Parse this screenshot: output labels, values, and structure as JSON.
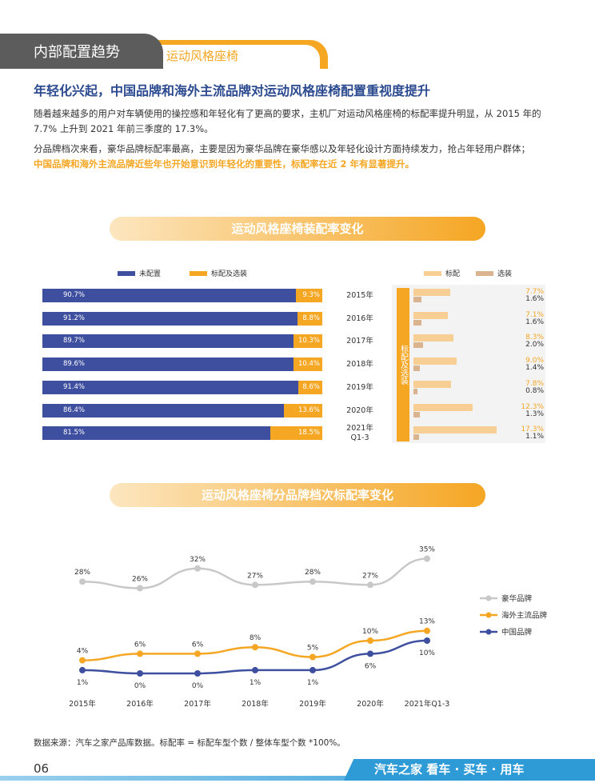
{
  "header": {
    "section_title": "内部配置趋势",
    "sub_title": "运动风格座椅"
  },
  "headline": "年轻化兴起，中国品牌和海外主流品牌对运动风格座椅配置重视度提升",
  "paragraphs": {
    "p1": "随着越来越多的用户对车辆使用的操控感和年轻化有了更高的要求，主机厂对运动风格座椅的标配率提升明显，从 2015 年的 7.7% 上升到 2021 年前三季度的 17.3%。",
    "p2": "分品牌档次来看，豪华品牌标配率最高，主要是因为豪华品牌在豪华感以及年轻化设计方面持续发力，抢占年轻用户群体；",
    "p3": "中国品牌和海外主流品牌近些年也开始意识到年轻化的重要性，标配率在近 2 年有显著提升。"
  },
  "section1_title": "运动风格座椅装配率变化",
  "section2_title": "运动风格座椅分品牌档次标配率变化",
  "left_legend": {
    "a": "未配置",
    "b": "标配及选装"
  },
  "right_legend": {
    "a": "标配",
    "b": "选装"
  },
  "right_axis_label": "标配及选装",
  "colors": {
    "navy": "#3e4f9f",
    "orange": "#f5a623",
    "gray": "#c8c8c8",
    "light_orange": "#f7cf95",
    "tan": "#d9b48f"
  },
  "chart_data": [
    {
      "type": "bar",
      "stacked": true,
      "orientation": "horizontal",
      "categories": [
        "2015年",
        "2016年",
        "2017年",
        "2018年",
        "2019年",
        "2020年",
        "2021年 Q1-3"
      ],
      "series": [
        {
          "name": "未配置",
          "values": [
            90.7,
            91.2,
            89.7,
            89.6,
            91.4,
            86.4,
            81.5
          ],
          "labels": [
            "90.7%",
            "91.2%",
            "89.7%",
            "89.6%",
            "91.4%",
            "86.4%",
            "81.5%"
          ]
        },
        {
          "name": "标配及选装",
          "values": [
            9.3,
            8.8,
            10.3,
            10.4,
            8.6,
            13.6,
            18.5
          ],
          "labels": [
            "9.3%",
            "8.8%",
            "10.3%",
            "10.4%",
            "8.6%",
            "13.6%",
            "18.5%"
          ]
        }
      ]
    },
    {
      "type": "bar",
      "orientation": "horizontal",
      "categories": [
        "2015年",
        "2016年",
        "2017年",
        "2018年",
        "2019年",
        "2020年",
        "2021年 Q1-3"
      ],
      "series": [
        {
          "name": "标配",
          "values": [
            7.7,
            7.1,
            8.3,
            9.0,
            7.8,
            12.3,
            17.3
          ],
          "labels": [
            "7.7%",
            "7.1%",
            "8.3%",
            "9.0%",
            "7.8%",
            "12.3%",
            "17.3%"
          ]
        },
        {
          "name": "选装",
          "values": [
            1.6,
            1.6,
            2.0,
            1.4,
            0.8,
            1.3,
            1.1
          ],
          "labels": [
            "1.6%",
            "1.6%",
            "2.0%",
            "1.4%",
            "0.8%",
            "1.3%",
            "1.1%"
          ]
        }
      ]
    },
    {
      "type": "line",
      "categories": [
        "2015年",
        "2016年",
        "2017年",
        "2018年",
        "2019年",
        "2020年",
        "2021年Q1-3"
      ],
      "series": [
        {
          "name": "豪华品牌",
          "values": [
            28,
            26,
            32,
            27,
            28,
            27,
            35
          ],
          "labels": [
            "28%",
            "26%",
            "32%",
            "27%",
            "28%",
            "27%",
            "35%"
          ]
        },
        {
          "name": "海外主流品牌",
          "values": [
            4,
            6,
            6,
            8,
            5,
            10,
            13
          ],
          "labels": [
            "4%",
            "6%",
            "6%",
            "8%",
            "5%",
            "10%",
            "13%"
          ]
        },
        {
          "name": "中国品牌",
          "values": [
            1,
            0,
            0,
            1,
            1,
            6,
            10
          ],
          "labels": [
            "1%",
            "0%",
            "0%",
            "1%",
            "1%",
            "6%",
            "10%"
          ]
        }
      ]
    }
  ],
  "source_note": "数据来源：汽车之家产品库数据。标配率 = 标配车型个数 / 整体车型个数 *100%。",
  "footer": {
    "page": "06",
    "slogan": "汽车之家 看车 · 买车 · 用车"
  }
}
